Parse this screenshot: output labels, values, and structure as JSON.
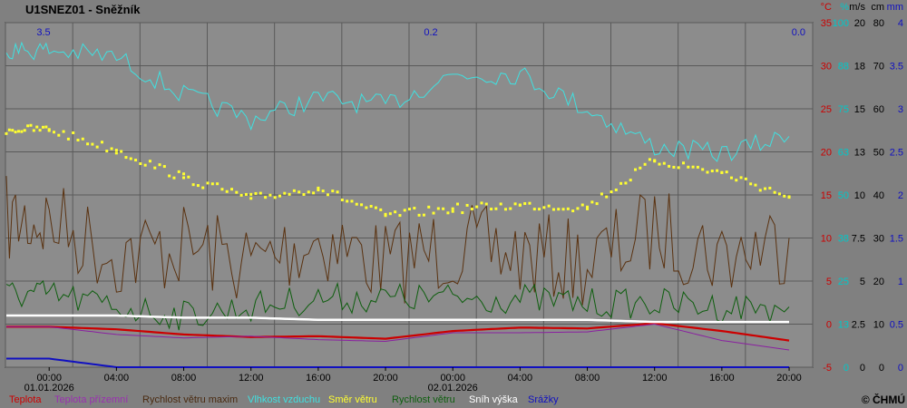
{
  "title": "U1SNEZ01 - Sněžník",
  "copyright": "© ČHMÚ",
  "colors": {
    "background": "#808080",
    "plot_background": "#8c8c8c",
    "grid": "#5a5a5a",
    "teplota": "#cc0000",
    "teplota_prizemni": "#8a1fa0",
    "rychlost_maxim": "#5a3210",
    "vlhkost": "#40e0e0",
    "smer_vetru": "#ffff30",
    "rychlost_vetru": "#0e5e0e",
    "snih": "#ffffff",
    "srazky": "#1010c0",
    "red_axis": "#cc0000",
    "cyan_axis": "#00c8c8",
    "blue_axis": "#1010c0"
  },
  "unit_labels": [
    "°C",
    "%",
    "m/s",
    "cm",
    "mm"
  ],
  "axes": {
    "temperature": [
      "35",
      "30",
      "25",
      "20",
      "15",
      "10",
      "5",
      "0",
      "-5"
    ],
    "humidity": [
      "100",
      "88",
      "75",
      "63",
      "50",
      "38",
      "25",
      "13",
      "0"
    ],
    "wind": [
      "20",
      "18",
      "15",
      "13",
      "10",
      "7.5",
      "5",
      "2.5",
      "0"
    ],
    "snow": [
      "80",
      "70",
      "60",
      "50",
      "40",
      "30",
      "20",
      "10",
      "0"
    ],
    "precip": [
      "4",
      "3.5",
      "3",
      "2.5",
      "2",
      "1.5",
      "1",
      "0.5",
      "0"
    ]
  },
  "time_ticks": [
    "00:00",
    "04:00",
    "08:00",
    "12:00",
    "16:00",
    "20:00",
    "00:00",
    "04:00",
    "08:00",
    "12:00",
    "16:00",
    "20:00"
  ],
  "dates": [
    "01.01.2026",
    "02.01.2026"
  ],
  "precip_totals": [
    "3.5",
    "0.2",
    "0.0"
  ],
  "legend": [
    {
      "label": "Teplota",
      "color": "#cc0000"
    },
    {
      "label": "Teplota přízemní",
      "color": "#9a30b0"
    },
    {
      "label": "Rychlost větru maxim",
      "color": "#4a2a10"
    },
    {
      "label": "Vlhkost vzduchu",
      "color": "#40e0e0"
    },
    {
      "label": "Směr  větru",
      "color": "#ffff30"
    },
    {
      "label": "Rychlost větru",
      "color": "#0e5e0e"
    },
    {
      "label": "Sníh výška",
      "color": "#ffffff"
    },
    {
      "label": "Srážky",
      "color": "#1010c0"
    }
  ],
  "chart_data": {
    "type": "line",
    "title": "U1SNEZ01 - Sněžník",
    "x": [
      "01.01.2026 00:00",
      "01.01.2026 04:00",
      "01.01.2026 08:00",
      "01.01.2026 12:00",
      "01.01.2026 16:00",
      "01.01.2026 20:00",
      "02.01.2026 00:00",
      "02.01.2026 04:00",
      "02.01.2026 08:00",
      "02.01.2026 12:00",
      "02.01.2026 16:00",
      "02.01.2026 20:00"
    ],
    "temperature_axis": {
      "unit": "°C",
      "ylim": [
        -5,
        35
      ]
    },
    "humidity_axis": {
      "unit": "%",
      "ylim": [
        0,
        100
      ]
    },
    "wind_axis": {
      "unit": "m/s",
      "ylim": [
        0,
        20
      ]
    },
    "snow_axis": {
      "unit": "cm",
      "ylim": [
        0,
        80
      ]
    },
    "precip_axis": {
      "unit": "mm",
      "ylim": [
        0,
        4
      ]
    },
    "series": [
      {
        "name": "Teplota",
        "axis": "temperature",
        "values": [
          -0.3,
          -0.6,
          -1.2,
          -1.5,
          -1.4,
          -1.7,
          -0.8,
          -0.4,
          -0.5,
          0.1,
          -0.8,
          -1.9
        ]
      },
      {
        "name": "Teplota přízemní",
        "axis": "temperature",
        "values": [
          -0.3,
          -1.2,
          -1.6,
          -1.4,
          -1.8,
          -2.0,
          -1.0,
          -1.0,
          -0.9,
          0.0,
          -1.9,
          -3.0
        ]
      },
      {
        "name": "Rychlost větru maxim",
        "axis": "wind",
        "values": [
          8.5,
          6.5,
          7.0,
          6.0,
          7.5,
          6.0,
          7.0,
          6.5,
          6.0,
          8.0,
          6.5,
          7.5
        ]
      },
      {
        "name": "Vlhkost vzduchu",
        "axis": "humidity",
        "values": [
          92,
          90,
          79,
          72,
          78,
          76,
          85,
          85,
          75,
          64,
          62,
          67
        ]
      },
      {
        "name": "Směr  větru",
        "axis": "wind",
        "values": [
          13.8,
          12.6,
          11.0,
          9.8,
          10.4,
          8.8,
          9.2,
          9.4,
          9.3,
          12.0,
          11.3,
          9.9
        ]
      },
      {
        "name": "Rychlost větru",
        "axis": "wind",
        "values": [
          4.2,
          3.5,
          3.0,
          3.5,
          4.0,
          4.0,
          4.0,
          4.0,
          3.7,
          3.7,
          3.5,
          3.5
        ]
      },
      {
        "name": "Sníh výška",
        "axis": "snow",
        "values": [
          12,
          12,
          11.5,
          11.5,
          11,
          11,
          11,
          11,
          11,
          10.5,
          10.5,
          10.5
        ]
      },
      {
        "name": "Srážky",
        "axis": "precip",
        "values": [
          0.1,
          0.0,
          0.0,
          0.0,
          0.0,
          0.0,
          0.0,
          0.0,
          0.0,
          0.0,
          0.0,
          0.0
        ]
      }
    ]
  }
}
